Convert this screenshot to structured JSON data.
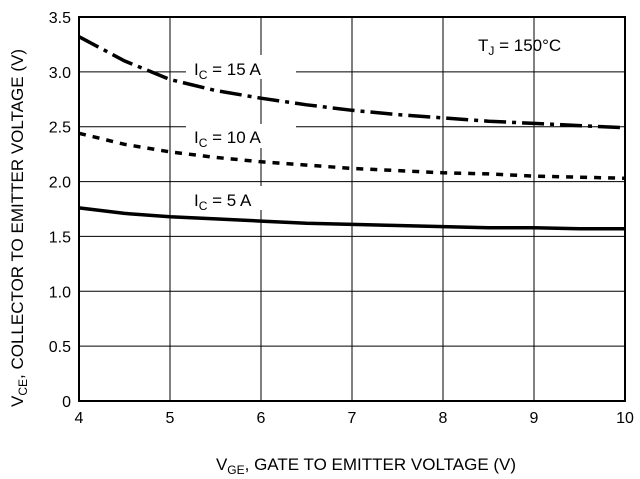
{
  "chart_data": {
    "type": "line",
    "xlabel": {
      "main": "V",
      "sub": "GE",
      "rest": ", GATE TO EMITTER VOLTAGE (V)"
    },
    "ylabel": {
      "main": "V",
      "sub": "CE",
      "rest": ", COLLECTOR TO EMITTER VOLTAGE (V)"
    },
    "xlim": [
      4,
      10
    ],
    "ylim": [
      0,
      3.5
    ],
    "x_ticks": [
      "4",
      "5",
      "6",
      "7",
      "8",
      "9",
      "10"
    ],
    "y_ticks": [
      "0",
      "0.5",
      "1.0",
      "1.5",
      "2.0",
      "2.5",
      "3.0",
      "3.5"
    ],
    "grid": true,
    "annotation": {
      "main": "T",
      "sub": "J",
      "rest": " = 150°C"
    },
    "series": [
      {
        "label": {
          "main": "I",
          "sub": "C",
          "rest": " = 15 A"
        },
        "style": "dashdot",
        "x": [
          4,
          4.5,
          5,
          5.5,
          6,
          6.5,
          7,
          7.5,
          8,
          8.5,
          9,
          9.5,
          10
        ],
        "y": [
          3.32,
          3.1,
          2.93,
          2.83,
          2.76,
          2.7,
          2.65,
          2.61,
          2.58,
          2.55,
          2.53,
          2.51,
          2.49
        ]
      },
      {
        "label": {
          "main": "I",
          "sub": "C",
          "rest": " = 10 A"
        },
        "style": "dashed",
        "x": [
          4,
          4.5,
          5,
          5.5,
          6,
          6.5,
          7,
          7.5,
          8,
          8.5,
          9,
          9.5,
          10
        ],
        "y": [
          2.44,
          2.34,
          2.27,
          2.22,
          2.18,
          2.15,
          2.12,
          2.1,
          2.08,
          2.07,
          2.05,
          2.04,
          2.03
        ]
      },
      {
        "label": {
          "main": "I",
          "sub": "C",
          "rest": " = 5 A"
        },
        "style": "solid",
        "x": [
          4,
          4.5,
          5,
          5.5,
          6,
          6.5,
          7,
          7.5,
          8,
          8.5,
          9,
          9.5,
          10
        ],
        "y": [
          1.76,
          1.71,
          1.68,
          1.66,
          1.64,
          1.62,
          1.61,
          1.6,
          1.59,
          1.58,
          1.58,
          1.57,
          1.57
        ]
      }
    ]
  }
}
